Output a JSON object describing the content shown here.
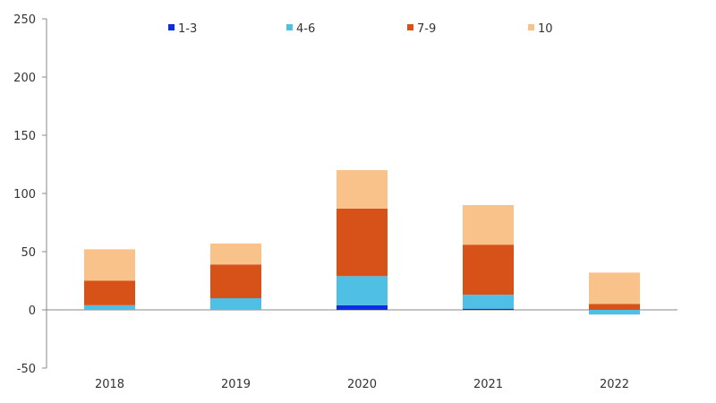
{
  "chart_data": {
    "type": "bar",
    "stacked": true,
    "categories": [
      "2018",
      "2019",
      "2020",
      "2021",
      "2022"
    ],
    "series": [
      {
        "name": "1-3",
        "color": "#0a2ee0",
        "values": [
          0,
          0,
          4,
          1,
          0
        ]
      },
      {
        "name": "4-6",
        "color": "#4fc0e4",
        "values": [
          4,
          10,
          25,
          12,
          -4
        ]
      },
      {
        "name": "7-9",
        "color": "#d65218",
        "values": [
          21,
          29,
          58,
          43,
          5
        ]
      },
      {
        "name": "10",
        "color": "#f9c28a",
        "values": [
          27,
          18,
          33,
          34,
          27
        ]
      }
    ],
    "ylim": [
      -50,
      250
    ],
    "yticks": [
      -50,
      0,
      50,
      100,
      150,
      200,
      250
    ],
    "ytick_labels": [
      "-50",
      "0",
      "50",
      "100",
      "150",
      "200",
      "250"
    ],
    "legend_position": "top",
    "grid": false,
    "title": "",
    "xlabel": "",
    "ylabel": ""
  }
}
